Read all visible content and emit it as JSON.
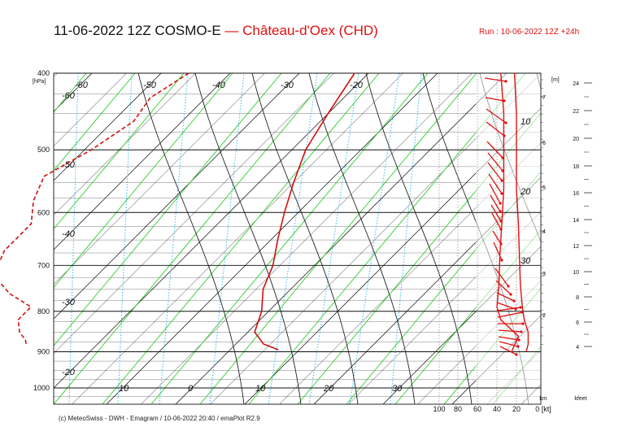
{
  "header": {
    "title_main": "11-06-2022 12Z COSMO-E",
    "title_dash": "—",
    "title_station": "Château-d'Oex (CHD)",
    "run": "Run : 10-06-2022 12Z +24h",
    "credit": "(c) MeteoSwiss - DWH - Emagram / 10-06-2022  20:40 / emaPlot R2.9",
    "pressure_unit": "[hPa]",
    "height_unit_m": "[m]",
    "km_label": "km",
    "kfeet_label": "kfeet",
    "kt_label": "0 [kt]"
  },
  "colors": {
    "temperature": "#d01010",
    "dewpoint": "#d01010",
    "wind": "#e01010",
    "dry_adiabat": "#33cc33",
    "isotherm": "#111111",
    "pressure_line": "#111111",
    "mixing_ratio": "#33bbee",
    "sat_adiabat": "#222222"
  },
  "chart_data": {
    "type": "emagram",
    "pressure_levels": [
      "400",
      "500",
      "600",
      "700",
      "800",
      "900",
      "1000"
    ],
    "ylim": [
      1000,
      400
    ],
    "isotherm_labels": [
      "-60",
      "-50",
      "-40",
      "-30",
      "-20",
      "-60",
      "-50",
      "-40",
      "-30",
      "-20",
      "10",
      "0",
      "10",
      "20",
      "30"
    ],
    "height_m_labels": [
      "7",
      "6",
      "5",
      "4",
      "3",
      "2"
    ],
    "height_kfeet_labels": [
      "24",
      "22",
      "20",
      "18",
      "16",
      "14",
      "12",
      "10",
      "8",
      "6",
      "4"
    ],
    "wind_speed_axis": [
      "100",
      "80",
      "60",
      "40",
      "20"
    ],
    "wind_speed_labels": [
      "10",
      "20",
      "30"
    ],
    "temperature": {
      "name": "T",
      "points": [
        [
          400,
          -22
        ],
        [
          450,
          -20
        ],
        [
          500,
          -18
        ],
        [
          550,
          -15
        ],
        [
          600,
          -12
        ],
        [
          650,
          -9
        ],
        [
          700,
          -6
        ],
        [
          750,
          -4
        ],
        [
          800,
          -1
        ],
        [
          850,
          1
        ],
        [
          880,
          4
        ],
        [
          895,
          7
        ]
      ]
    },
    "dewpoint": {
      "name": "Td",
      "points": [
        [
          400,
          -46
        ],
        [
          430,
          -48
        ],
        [
          460,
          -47
        ],
        [
          500,
          -49
        ],
        [
          540,
          -52
        ],
        [
          580,
          -50
        ],
        [
          620,
          -47
        ],
        [
          670,
          -47
        ],
        [
          720,
          -45
        ],
        [
          760,
          -40
        ],
        [
          790,
          -35
        ],
        [
          820,
          -35
        ],
        [
          850,
          -33
        ],
        [
          870,
          -31
        ],
        [
          885,
          -30
        ]
      ]
    },
    "wind_speed_profile": [
      [
        400,
        22
      ],
      [
        450,
        20
      ],
      [
        500,
        20
      ],
      [
        560,
        20
      ],
      [
        620,
        18
      ],
      [
        680,
        17
      ],
      [
        740,
        16
      ],
      [
        790,
        14
      ],
      [
        820,
        12
      ],
      [
        850,
        8
      ],
      [
        880,
        8
      ],
      [
        900,
        10
      ]
    ],
    "wind_direction_profile": [
      [
        400,
        36
      ],
      [
        450,
        33
      ],
      [
        500,
        33
      ],
      [
        560,
        33
      ],
      [
        620,
        35
      ],
      [
        680,
        37
      ],
      [
        740,
        38
      ],
      [
        790,
        40
      ],
      [
        820,
        36
      ],
      [
        860,
        18
      ],
      [
        900,
        25
      ]
    ]
  }
}
